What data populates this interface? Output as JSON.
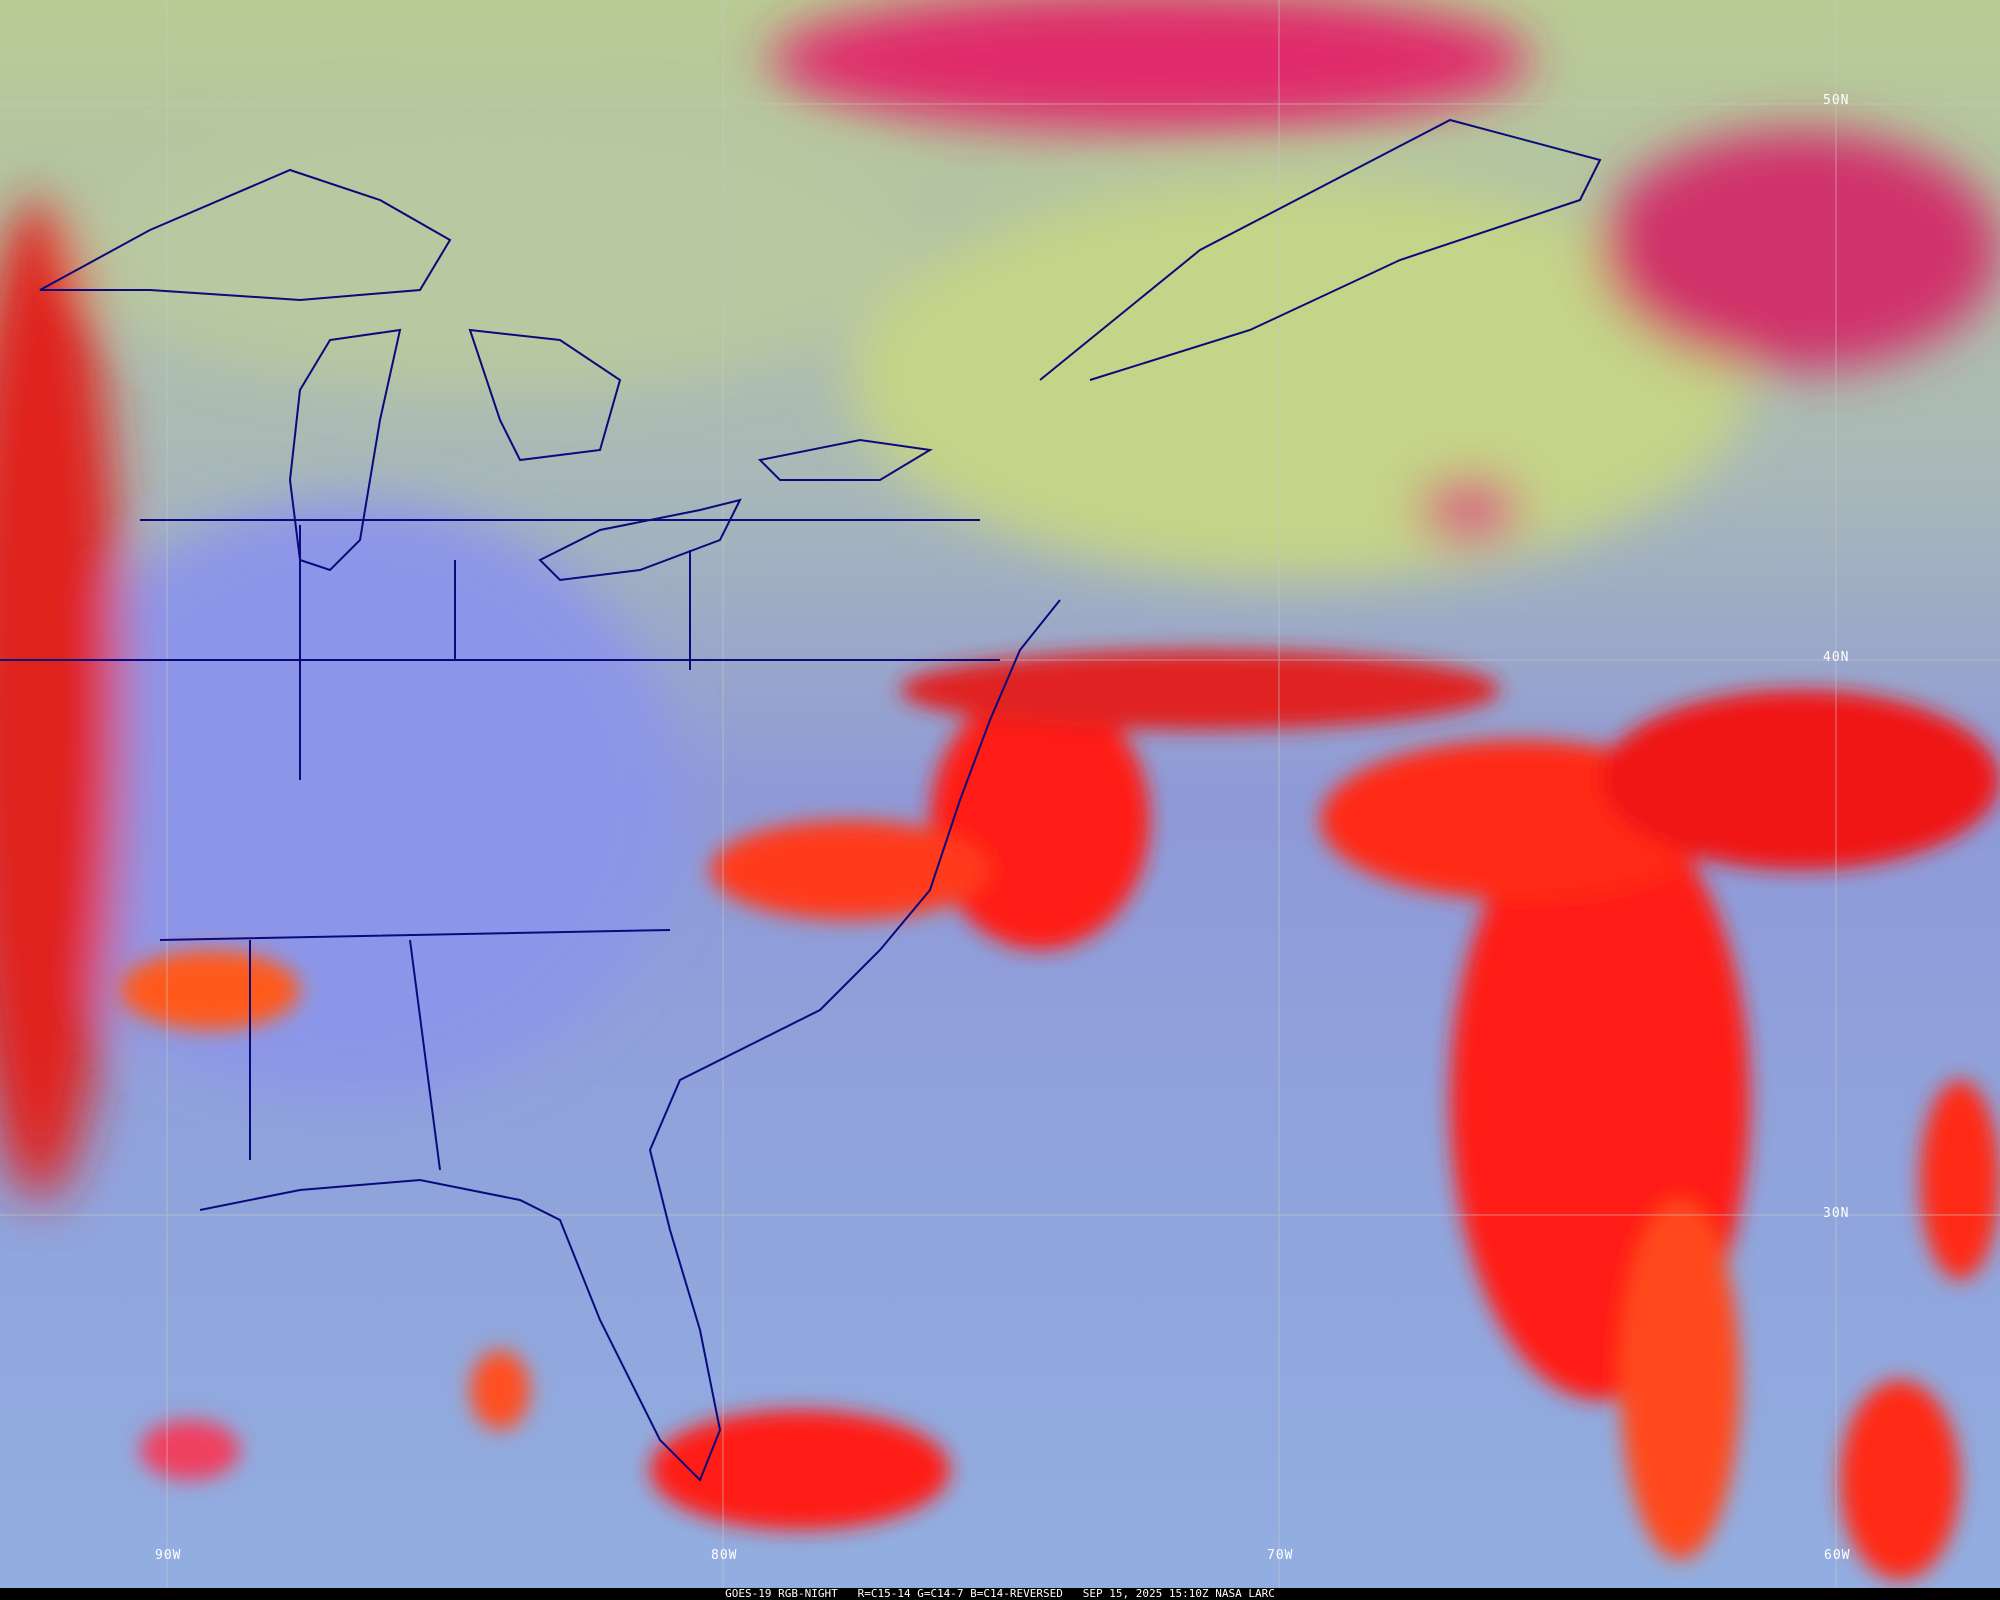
{
  "caption": {
    "satellite": "GOES-19 RGB-NIGHT",
    "channels": "R=C15-14 G=C14-7 B=C14-REVERSED",
    "datetime": "SEP 15, 2025 15:10Z",
    "source": "NASA LARC"
  },
  "latitude_labels": [
    "50N",
    "40N",
    "30N"
  ],
  "longitude_labels": [
    "90W",
    "80W",
    "70W",
    "60W"
  ],
  "colors": {
    "high_cloud_red": "#ff1a12",
    "magenta_cloud": "#e02a6a",
    "low_cloud_yellow_green": "#c4d488",
    "clear_land_blue": "#8c96e8",
    "ocean_blue": "#92aee0",
    "borders": "#0a0a7a",
    "grid": "#c8c8c8"
  }
}
